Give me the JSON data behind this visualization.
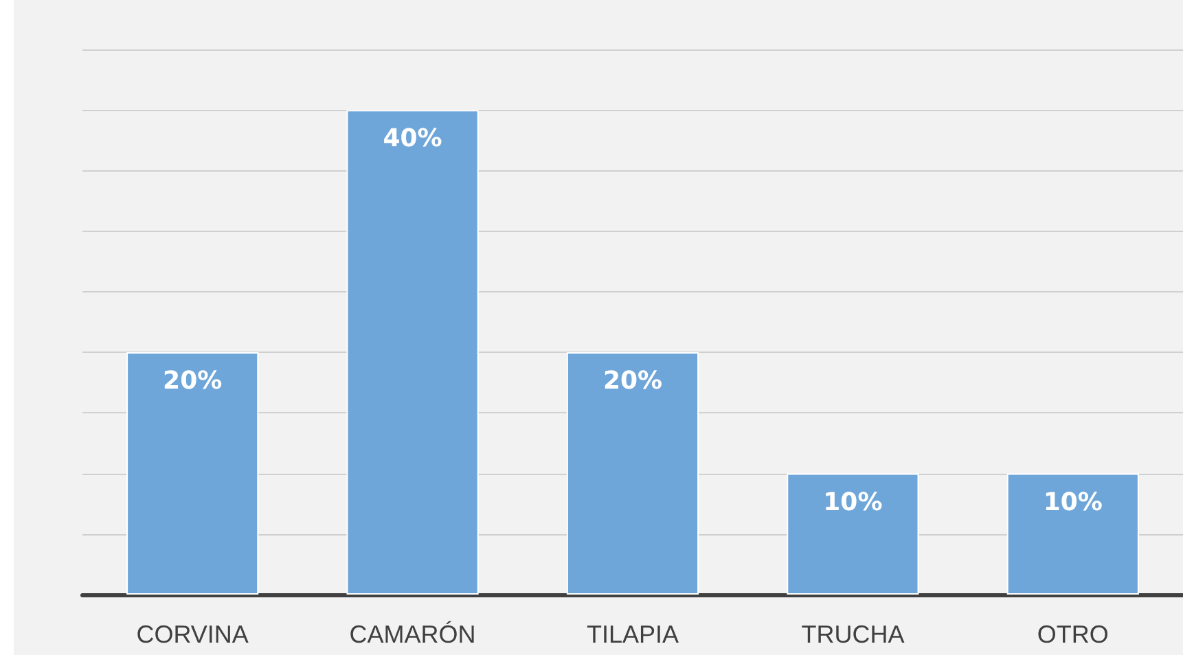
{
  "chart_data": {
    "type": "bar",
    "categories": [
      "CORVINA",
      "CAMARÓN",
      "TILAPIA",
      "TRUCHA",
      "OTRO"
    ],
    "values": [
      20,
      40,
      20,
      10,
      10
    ],
    "value_labels": [
      "20%",
      "40%",
      "20%",
      "10%",
      "10%"
    ],
    "color": "#6ea6da",
    "ylim": [
      0,
      45
    ],
    "yticks": [
      {
        "value": 0,
        "label": null
      },
      {
        "value": 5,
        "label": null
      },
      {
        "value": 10,
        "label": null
      },
      {
        "value": 15,
        "label": null
      },
      {
        "value": 20,
        "label": null
      },
      {
        "value": 25,
        "label": null
      },
      {
        "value": 30,
        "label": null
      },
      {
        "value": 35,
        "label": null
      },
      {
        "value": 40,
        "label": null
      },
      {
        "value": 45,
        "label": null
      }
    ],
    "tick_labels": "x",
    "grid": "y"
  }
}
